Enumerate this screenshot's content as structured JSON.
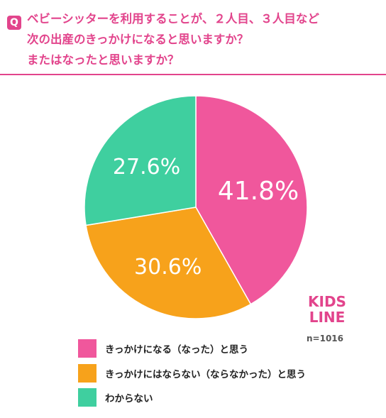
{
  "header": {
    "badge": "Q",
    "title_lines": [
      "ベビーシッターを利用することが、２人目、３人目など",
      "次の出産のきっかけになると思いますか？",
      "またはなったと思いますか？"
    ]
  },
  "logo": {
    "line1": "KIDS",
    "line2": "LINE"
  },
  "sample_size": "n=1016",
  "colors": {
    "accent": "#e2448c",
    "logo": "#e2448c"
  },
  "chart_data": {
    "type": "pie",
    "title": "",
    "slices": [
      {
        "label": "きっかけになる（なった）と思う",
        "value": 41.8,
        "display": "41.8%",
        "color": "#f0579c"
      },
      {
        "label": "きっかけにはならない（ならなかった）と思う",
        "value": 30.6,
        "display": "30.6%",
        "color": "#f7a21b"
      },
      {
        "label": "わからない",
        "value": 27.6,
        "display": "27.6%",
        "color": "#3fcf9f"
      }
    ],
    "legend_placement": "bottom"
  }
}
